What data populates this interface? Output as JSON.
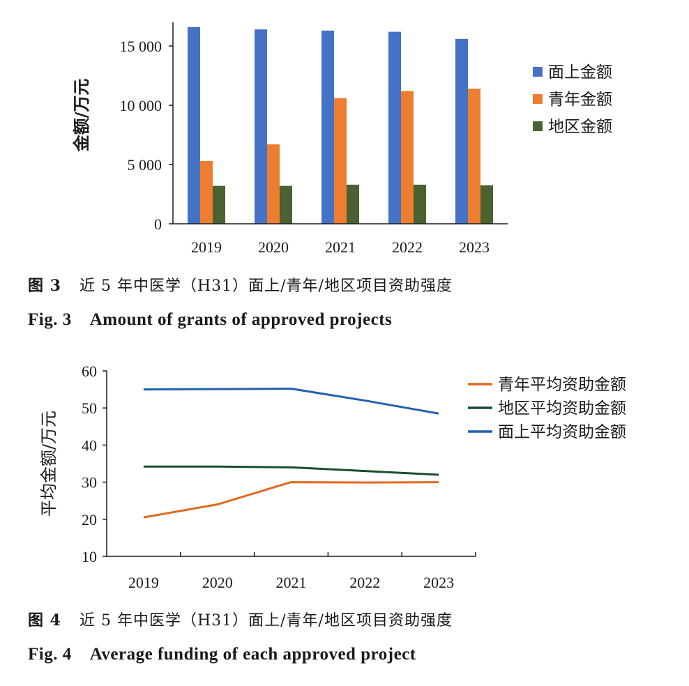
{
  "figures": [
    {
      "caption_zh_number": "图 3",
      "caption_zh_text": "近 5 年中医学（H31）面上/青年/地区项目资助强度",
      "caption_en_number": "Fig. 3",
      "caption_en_text": "Amount of grants of approved projects"
    },
    {
      "caption_zh_number": "图 4",
      "caption_zh_text": "近 5 年中医学（H31）面上/青年/地区项目资助强度",
      "caption_en_number": "Fig. 4",
      "caption_en_text": "Average funding of each approved project"
    }
  ],
  "chart_data": [
    {
      "type": "bar",
      "title": "",
      "xlabel": "",
      "ylabel": "金额/万元",
      "categories": [
        "2019",
        "2020",
        "2021",
        "2022",
        "2023"
      ],
      "series": [
        {
          "name": "面上金额",
          "color": "#4472c4",
          "values": [
            16600,
            16400,
            16300,
            16200,
            15600
          ]
        },
        {
          "name": "青年金额",
          "color": "#ed7d31",
          "values": [
            5300,
            6700,
            10600,
            11200,
            11400
          ]
        },
        {
          "name": "地区金额",
          "color": "#4a6131",
          "values": [
            3200,
            3200,
            3300,
            3300,
            3250
          ]
        }
      ],
      "ylim": [
        0,
        17000
      ],
      "yticks": [
        0,
        5000,
        10000,
        15000
      ],
      "ytick_labels": [
        "0",
        "5 000",
        "10 000",
        "15 000"
      ],
      "legend_position": "right"
    },
    {
      "type": "line",
      "title": "",
      "xlabel": "",
      "ylabel": "平均金额/万元",
      "categories": [
        "2019",
        "2020",
        "2021",
        "2022",
        "2023"
      ],
      "series": [
        {
          "name": "青年平均资助金额",
          "color": "#e2691e",
          "values": [
            20.5,
            24.0,
            30.0,
            29.9,
            30.0
          ]
        },
        {
          "name": "地区平均资助金额",
          "color": "#1b4d2e",
          "values": [
            34.2,
            34.2,
            34.0,
            33.0,
            32.0
          ]
        },
        {
          "name": "面上平均资助金额",
          "color": "#2160ae",
          "values": [
            55.0,
            55.1,
            55.2,
            52.0,
            48.5
          ]
        }
      ],
      "ylim": [
        10,
        60
      ],
      "yticks": [
        10,
        20,
        30,
        40,
        50,
        60
      ],
      "ytick_labels": [
        "10",
        "20",
        "30",
        "40",
        "50",
        "60"
      ],
      "legend_position": "top-right"
    }
  ]
}
